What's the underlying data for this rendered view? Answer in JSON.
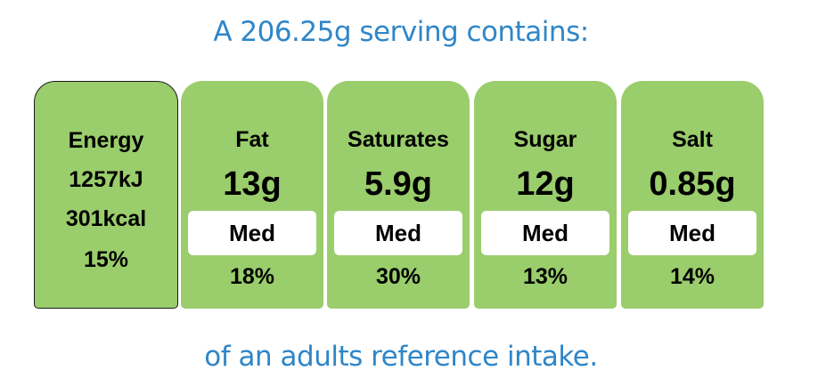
{
  "heading": "A 206.25g serving contains:",
  "footer": "of an adults reference intake.",
  "colors": {
    "panel": "#9acd6b",
    "text_accent": "#2f86c8",
    "level_box": "#ffffff"
  },
  "energy": {
    "label": "Energy",
    "kj": "1257kJ",
    "kcal": "301kcal",
    "percent": "15%"
  },
  "nutrients": [
    {
      "label": "Fat",
      "value": "13g",
      "level": "Med",
      "percent": "18%"
    },
    {
      "label": "Saturates",
      "value": "5.9g",
      "level": "Med",
      "percent": "30%"
    },
    {
      "label": "Sugar",
      "value": "12g",
      "level": "Med",
      "percent": "13%"
    },
    {
      "label": "Salt",
      "value": "0.85g",
      "level": "Med",
      "percent": "14%"
    }
  ]
}
